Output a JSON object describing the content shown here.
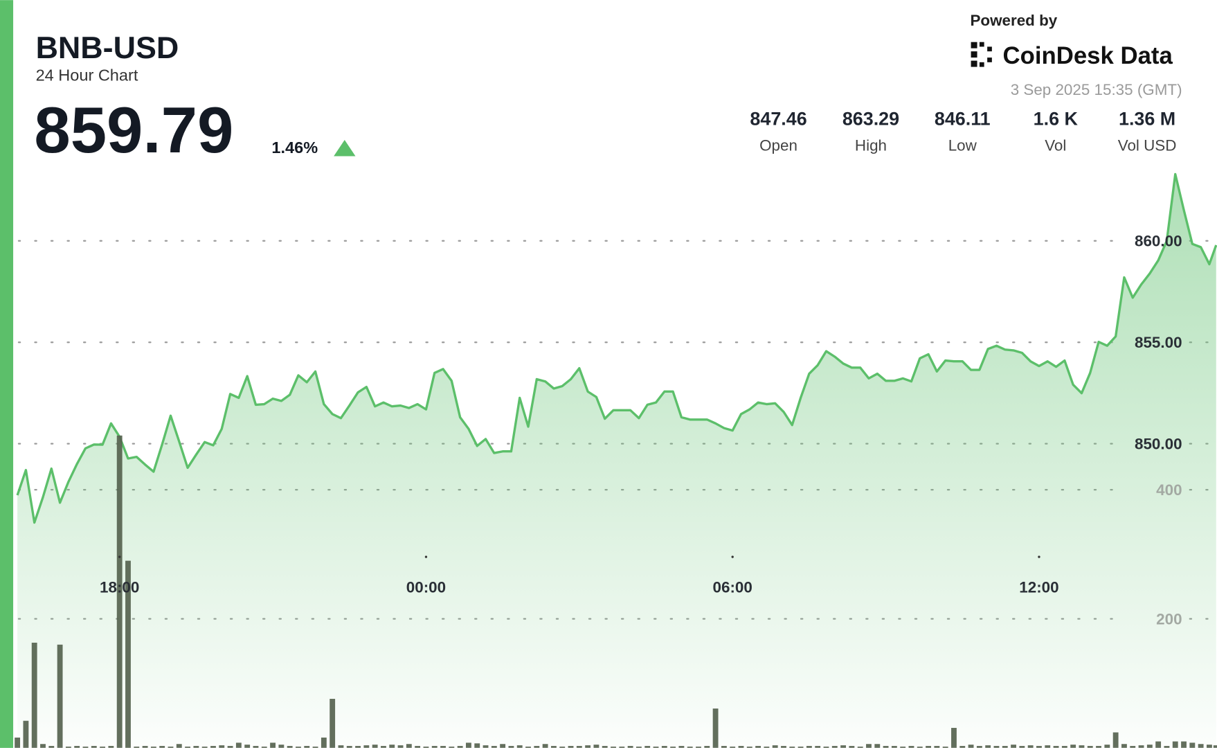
{
  "header": {
    "symbol": "BNB-USD",
    "subtitle": "24 Hour Chart",
    "price": 859.79,
    "change": "1.46%",
    "powered_by": "Powered by",
    "brand": "CoinDesk Data",
    "timestamp": "3 Sep 2025 15:35 (GMT)"
  },
  "stats": [
    {
      "value": 847.46,
      "label": "Open"
    },
    {
      "value": 863.29,
      "label": "High"
    },
    {
      "value": 846.11,
      "label": "Low"
    },
    {
      "value": "1.6 K",
      "label": "Vol"
    },
    {
      "value": "1.36 M",
      "label": "Vol USD"
    }
  ],
  "chart_data": {
    "type": "line",
    "x": [
      -480,
      -470,
      -460,
      -450,
      -440,
      -430,
      -420,
      -410,
      -400,
      -390,
      -380,
      -370,
      -360,
      -350,
      -340,
      -330,
      -320,
      -310,
      -300,
      -290,
      -280,
      -270,
      -260,
      -250,
      -240,
      -230,
      -220,
      -210,
      -200,
      -190,
      -180,
      -170,
      -160,
      -150,
      -140,
      -130,
      -120,
      -110,
      -100,
      -90,
      -80,
      -70,
      -60,
      -50,
      -40,
      -30,
      -20,
      -10,
      0,
      10,
      20,
      30,
      40,
      50,
      60,
      70,
      80,
      90,
      100,
      110,
      120,
      130,
      140,
      150,
      160,
      170,
      180,
      190,
      200,
      210,
      220,
      230,
      240,
      250,
      260,
      270,
      280,
      290,
      300,
      310,
      320,
      330,
      340,
      350,
      360,
      370,
      380,
      390,
      400,
      410,
      420,
      430,
      440,
      450,
      460,
      470,
      480,
      490,
      500,
      510,
      520,
      530,
      540,
      550,
      560,
      570,
      580,
      590,
      600,
      610,
      620,
      630,
      640,
      650,
      660,
      670,
      680,
      690,
      700,
      710,
      720,
      730,
      740,
      750,
      760,
      770,
      780,
      790,
      800,
      810,
      820,
      830,
      840,
      850,
      860,
      870,
      880,
      890,
      900,
      910,
      920,
      928
    ],
    "xlim": [
      -484,
      929
    ],
    "xticks": [
      {
        "value": -360,
        "label": "18:00"
      },
      {
        "value": 0,
        "label": "00:00"
      },
      {
        "value": 360,
        "label": "06:00"
      },
      {
        "value": 720,
        "label": "12:00"
      }
    ],
    "ylim": [
      835,
      863.64
    ],
    "yticks": [
      {
        "value": 850,
        "label": "850.00"
      },
      {
        "value": 855,
        "label": "855.00"
      },
      {
        "value": 860,
        "label": "860.00"
      }
    ],
    "y2lim": [
      0,
      900
    ],
    "y2ticks": [
      200,
      400
    ],
    "grid": true,
    "series": [
      {
        "color": "#5cbf6a",
        "area": true,
        "values": [
          847.46,
          848.7,
          846.11,
          847.36,
          848.77,
          847.09,
          848.12,
          849.0,
          849.77,
          849.96,
          849.95,
          851.0,
          850.34,
          849.27,
          849.35,
          848.97,
          848.62,
          849.96,
          851.38,
          850.11,
          848.81,
          849.46,
          850.08,
          849.92,
          850.73,
          852.45,
          852.26,
          853.33,
          851.92,
          851.95,
          852.22,
          852.11,
          852.41,
          853.37,
          853.03,
          853.56,
          851.95,
          851.46,
          851.26,
          851.88,
          852.53,
          852.8,
          851.84,
          852.03,
          851.84,
          851.88,
          851.76,
          851.95,
          851.69,
          853.49,
          853.68,
          853.1,
          851.3,
          850.73,
          849.89,
          850.23,
          849.54,
          849.62,
          849.62,
          852.26,
          850.84,
          853.18,
          853.07,
          852.72,
          852.84,
          853.18,
          853.72,
          852.57,
          852.3,
          851.23,
          851.65,
          851.65,
          851.65,
          851.26,
          851.92,
          852.03,
          852.57,
          852.57,
          851.3,
          851.19,
          851.19,
          851.19,
          851.0,
          850.77,
          850.65,
          851.46,
          851.69,
          852.03,
          851.95,
          851.99,
          851.57,
          850.92,
          852.26,
          853.45,
          853.87,
          854.56,
          854.29,
          853.95,
          853.75,
          853.75,
          853.22,
          853.45,
          853.1,
          853.1,
          853.22,
          853.07,
          854.21,
          854.41,
          853.56,
          854.1,
          854.06,
          854.06,
          853.64,
          853.64,
          854.67,
          854.83,
          854.64,
          854.6,
          854.48,
          854.06,
          853.83,
          854.06,
          853.79,
          854.1,
          852.91,
          852.49,
          853.49,
          855.02,
          854.83,
          855.29,
          858.2,
          857.2,
          857.85,
          858.39,
          859.04,
          860,
          863.29,
          861.53,
          859.85,
          859.69,
          858.85,
          859.79
        ]
      },
      {
        "type": "bar",
        "axis": "y2",
        "color": "#56634f",
        "values": [
          16,
          42,
          163,
          6,
          3,
          160,
          2,
          3,
          2,
          3,
          2,
          3,
          484,
          290,
          2,
          3,
          2,
          3,
          2,
          6,
          2,
          3,
          2,
          3,
          4,
          3,
          8,
          5,
          3,
          2,
          8,
          5,
          3,
          2,
          3,
          2,
          16,
          76,
          4,
          3,
          3,
          4,
          5,
          3,
          5,
          4,
          6,
          3,
          2,
          3,
          3,
          2,
          3,
          8,
          7,
          4,
          3,
          6,
          3,
          4,
          2,
          3,
          6,
          3,
          2,
          3,
          3,
          4,
          5,
          3,
          2,
          2,
          3,
          2,
          3,
          2,
          3,
          2,
          3,
          2,
          2,
          3,
          61,
          3,
          2,
          3,
          2,
          3,
          2,
          4,
          3,
          2,
          2,
          3,
          3,
          2,
          3,
          4,
          3,
          2,
          6,
          6,
          3,
          3,
          2,
          3,
          2,
          3,
          3,
          2,
          31,
          3,
          5,
          3,
          4,
          3,
          3,
          5,
          3,
          4,
          3,
          4,
          3,
          3,
          5,
          4,
          3,
          3,
          5,
          24,
          6,
          3,
          4,
          5,
          10,
          3,
          10,
          10,
          8,
          6,
          5,
          4
        ]
      }
    ]
  }
}
